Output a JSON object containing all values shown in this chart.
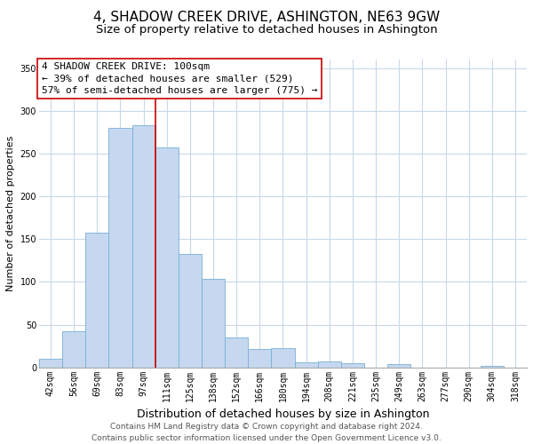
{
  "title": "4, SHADOW CREEK DRIVE, ASHINGTON, NE63 9GW",
  "subtitle": "Size of property relative to detached houses in Ashington",
  "xlabel": "Distribution of detached houses by size in Ashington",
  "ylabel": "Number of detached properties",
  "bar_labels": [
    "42sqm",
    "56sqm",
    "69sqm",
    "83sqm",
    "97sqm",
    "111sqm",
    "125sqm",
    "138sqm",
    "152sqm",
    "166sqm",
    "180sqm",
    "194sqm",
    "208sqm",
    "221sqm",
    "235sqm",
    "249sqm",
    "263sqm",
    "277sqm",
    "290sqm",
    "304sqm",
    "318sqm"
  ],
  "bar_heights": [
    10,
    42,
    157,
    280,
    283,
    257,
    133,
    103,
    35,
    22,
    23,
    6,
    7,
    5,
    0,
    4,
    0,
    0,
    0,
    2,
    0
  ],
  "bar_color": "#c5d8ef",
  "bar_edge_color": "#7aafd4",
  "vline_x_index": 4,
  "vline_color": "#cc0000",
  "annotation_title": "4 SHADOW CREEK DRIVE: 100sqm",
  "annotation_line1": "← 39% of detached houses are smaller (529)",
  "annotation_line2": "57% of semi-detached houses are larger (775) →",
  "annotation_box_color": "#ffffff",
  "annotation_box_edge_color": "#cc0000",
  "ylim": [
    0,
    360
  ],
  "yticks": [
    0,
    50,
    100,
    150,
    200,
    250,
    300,
    350
  ],
  "footer_line1": "Contains HM Land Registry data © Crown copyright and database right 2024.",
  "footer_line2": "Contains public sector information licensed under the Open Government Licence v3.0.",
  "title_fontsize": 11,
  "subtitle_fontsize": 9.5,
  "xlabel_fontsize": 9,
  "ylabel_fontsize": 8,
  "tick_fontsize": 7,
  "footer_fontsize": 6.5,
  "annotation_fontsize": 8,
  "background_color": "#ffffff",
  "grid_color": "#c8d8e8"
}
